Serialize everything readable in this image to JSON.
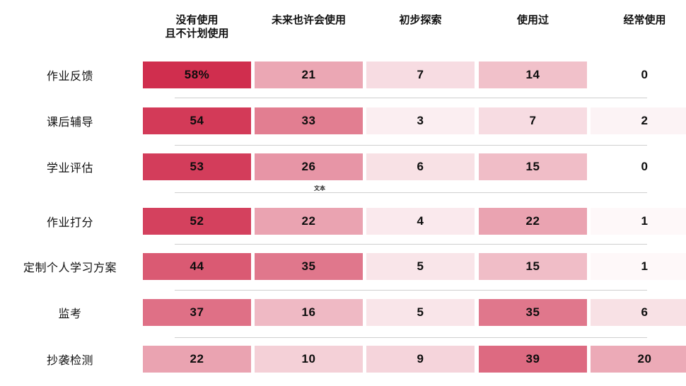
{
  "chart_data": {
    "type": "heatmap",
    "title": "",
    "columns": [
      "没有使用\n且不计划使用",
      "未来也许会使用",
      "初步探索",
      "使用过",
      "经常使用"
    ],
    "rows": [
      "作业反馈",
      "课后辅导",
      "学业评估",
      "作业打分",
      "定制个人学习方案",
      "监考",
      "抄袭检测"
    ],
    "values": [
      [
        58,
        21,
        7,
        14,
        0
      ],
      [
        54,
        33,
        3,
        7,
        2
      ],
      [
        53,
        26,
        6,
        15,
        0
      ],
      [
        52,
        22,
        4,
        22,
        1
      ],
      [
        44,
        35,
        5,
        15,
        1
      ],
      [
        37,
        16,
        5,
        35,
        6
      ],
      [
        22,
        10,
        9,
        39,
        20
      ]
    ],
    "cell_labels": [
      [
        "58%",
        "21",
        "7",
        "14",
        "0"
      ],
      [
        "54",
        "33",
        "3",
        "7",
        "2"
      ],
      [
        "53",
        "26",
        "6",
        "15",
        "0"
      ],
      [
        "52",
        "22",
        "4",
        "22",
        "1"
      ],
      [
        "44",
        "35",
        "5",
        "15",
        "1"
      ],
      [
        "37",
        "16",
        "5",
        "35",
        "6"
      ],
      [
        "22",
        "10",
        "9",
        "39",
        "20"
      ]
    ],
    "colormap": {
      "min_value": 0,
      "max_value": 58,
      "min_color": "#FFFFFF",
      "max_color": "#D02E4E",
      "gamma": 0.85
    },
    "text_color": "#0D0D0D",
    "divider_color": "#CFCFCF",
    "legend": "none",
    "grid": "row-dividers",
    "annotation": {
      "divider_label": "文本"
    }
  }
}
